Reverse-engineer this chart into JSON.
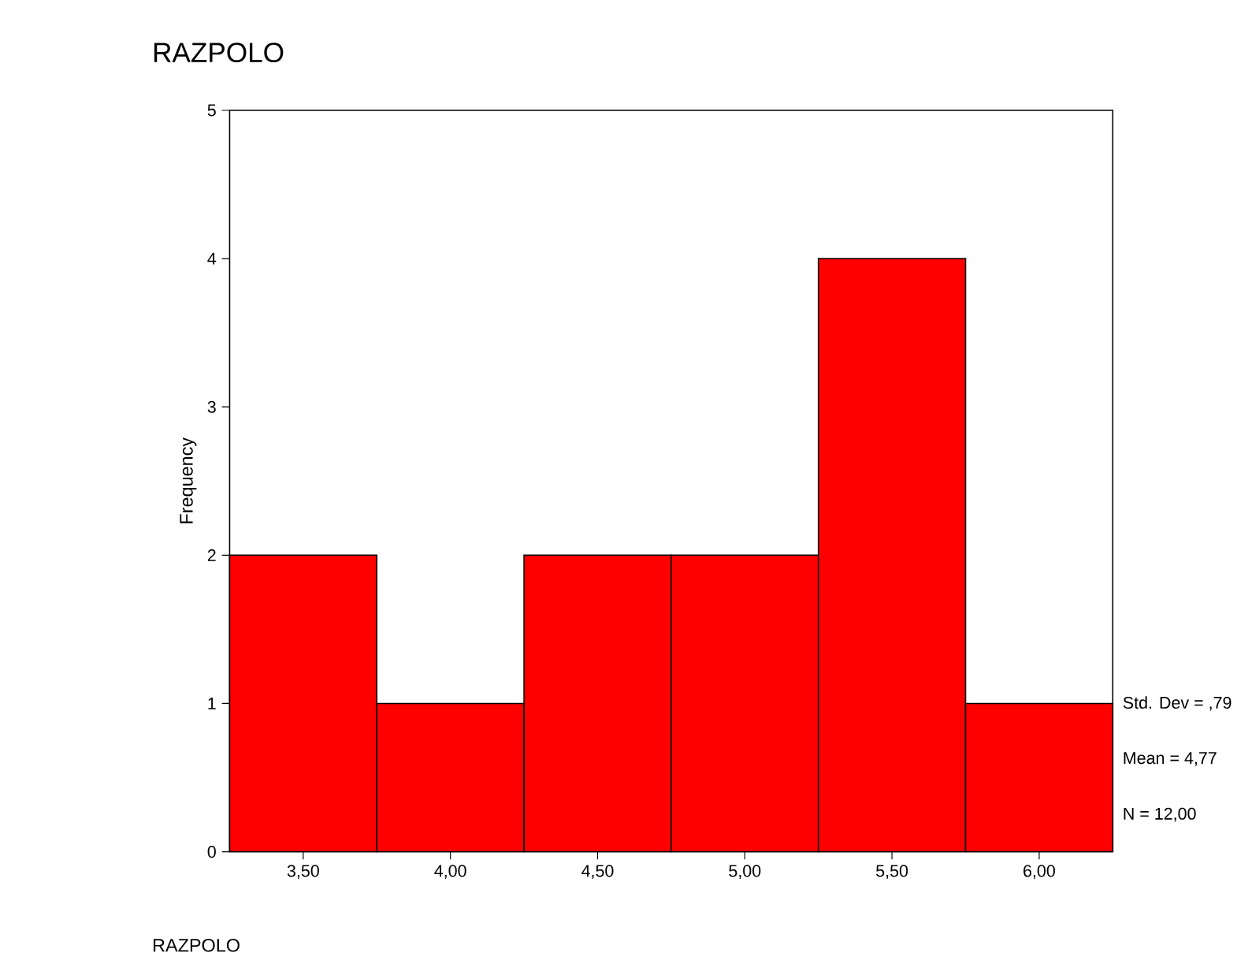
{
  "chart_data": {
    "type": "histogram",
    "title": "RAZPOLO",
    "xlabel": "RAZPOLO",
    "ylabel": "Frequency",
    "bins": [
      3.25,
      3.75,
      4.25,
      4.75,
      5.25,
      5.75,
      6.25
    ],
    "values": [
      2,
      1,
      2,
      2,
      4,
      1
    ],
    "color": "#ff0000",
    "xlim": [
      3.25,
      6.25
    ],
    "xticks": [
      {
        "value": 3.5,
        "label": "3,50"
      },
      {
        "value": 4.0,
        "label": "4,00"
      },
      {
        "value": 4.5,
        "label": "4,50"
      },
      {
        "value": 5.0,
        "label": "5,00"
      },
      {
        "value": 5.5,
        "label": "5,50"
      },
      {
        "value": 6.0,
        "label": "6,00"
      }
    ],
    "ylim": [
      0,
      5
    ],
    "yticks": [
      0,
      1,
      2,
      3,
      4,
      5
    ],
    "annotations": [
      "Std. Dev = ,79",
      "Mean = 4,77",
      "N = 12,00"
    ]
  }
}
